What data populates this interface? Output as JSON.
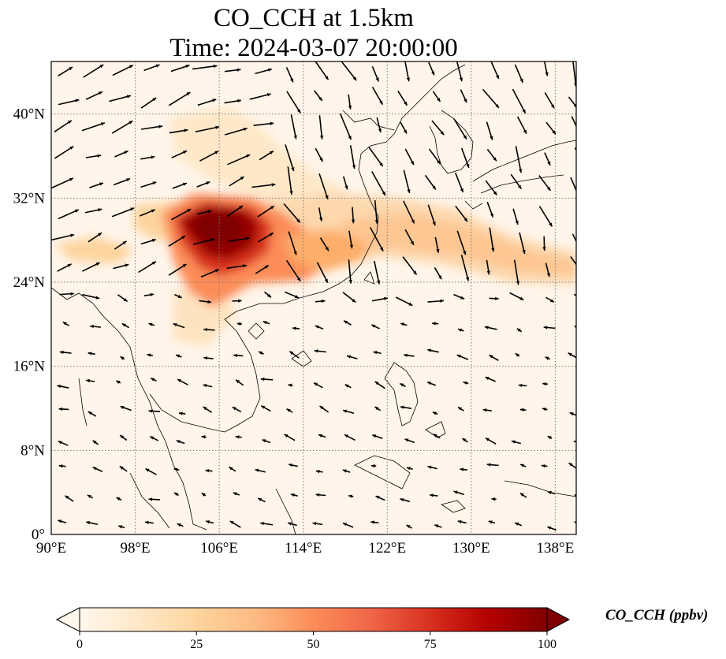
{
  "title_line1": "CO_CCH at 1.5km",
  "title_line2": "Time: 2024-03-07 20:00:00",
  "map": {
    "lon_range": [
      90,
      140
    ],
    "lat_range": [
      0,
      45
    ],
    "lon_ticks": [
      90,
      98,
      106,
      114,
      122,
      130,
      138
    ],
    "lon_tick_labels": [
      "90°E",
      "98°E",
      "106°E",
      "114°E",
      "122°E",
      "130°E",
      "138°E"
    ],
    "lat_ticks": [
      0,
      8,
      16,
      24,
      32,
      40
    ],
    "lat_tick_labels": [
      "0°",
      "8°N",
      "16°N",
      "24°N",
      "32°N",
      "40°N"
    ],
    "gridlines": "dotted",
    "coastlines": true,
    "wind_vectors": true,
    "colormap": "OrRd",
    "plume": {
      "max_region": "Sichuan Basin (~102–111°E, 27–31.5°N)",
      "transport": "eastward along ~24–30°N to ~138°E"
    }
  },
  "colorbar": {
    "label": "CO_CCH (ppbv)",
    "min": 0,
    "max": 100,
    "extend": "both",
    "ticks": [
      0,
      25,
      50,
      75,
      100
    ],
    "tick_labels": [
      "0",
      "25",
      "50",
      "75",
      "100"
    ],
    "colors": [
      "#fff7ec",
      "#fee8c8",
      "#fdd49e",
      "#fdbb84",
      "#fc8d59",
      "#ef6548",
      "#d7301f",
      "#b30000",
      "#7f0000"
    ]
  }
}
